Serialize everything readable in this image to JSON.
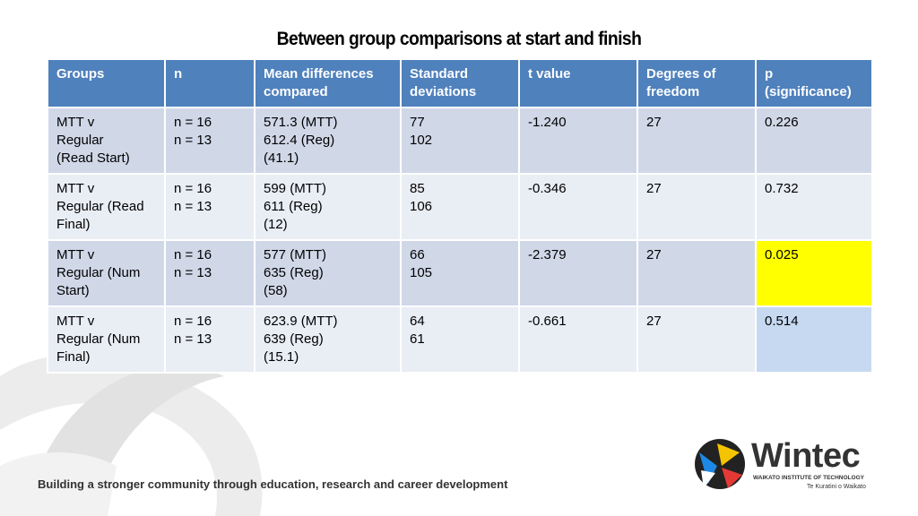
{
  "title": "Between group comparisons at start and finish",
  "table": {
    "header": [
      [
        "Groups"
      ],
      [
        "n"
      ],
      [
        "Mean differences",
        "compared"
      ],
      [
        "Standard",
        "deviations"
      ],
      [
        "t value"
      ],
      [
        "Degrees of",
        "freedom"
      ],
      [
        "p",
        "(significance)"
      ]
    ],
    "rows": [
      [
        [
          "MTT v",
          "Regular",
          "(Read Start)"
        ],
        [
          "n = 16",
          "n = 13"
        ],
        [
          "571.3 (MTT)",
          "612.4 (Reg)",
          "(41.1)"
        ],
        [
          "77",
          "102"
        ],
        [
          "-1.240"
        ],
        [
          "27"
        ],
        [
          "0.226"
        ]
      ],
      [
        [
          "MTT v",
          "Regular (Read",
          "Final)"
        ],
        [
          "n = 16",
          "n = 13"
        ],
        [
          "599 (MTT)",
          "611 (Reg)",
          "(12)"
        ],
        [
          "85",
          "106"
        ],
        [
          "-0.346"
        ],
        [
          "27"
        ],
        [
          "0.732"
        ]
      ],
      [
        [
          "MTT v",
          "Regular  (Num",
          "Start)"
        ],
        [
          "n = 16",
          "n = 13"
        ],
        [
          "577 (MTT)",
          "635 (Reg)",
          "(58)"
        ],
        [
          "66",
          "105"
        ],
        [
          "-2.379"
        ],
        [
          "27"
        ],
        [
          "0.025"
        ]
      ],
      [
        [
          "MTT v",
          "Regular (Num",
          "Final)"
        ],
        [
          "n = 16",
          "n = 13"
        ],
        [
          "623.9 (MTT)",
          "639 (Reg)",
          "(15.1)"
        ],
        [
          "64",
          "61"
        ],
        [
          "-0.661"
        ],
        [
          "27"
        ],
        [
          "0.514"
        ]
      ]
    ]
  },
  "footer": "Building a stronger community through education, research and career development",
  "logo": {
    "name": "Wintec",
    "institute": "WAIKATO INSTITUTE OF TECHNOLOGY",
    "tagline": "Te Kuratini o Waikato"
  }
}
